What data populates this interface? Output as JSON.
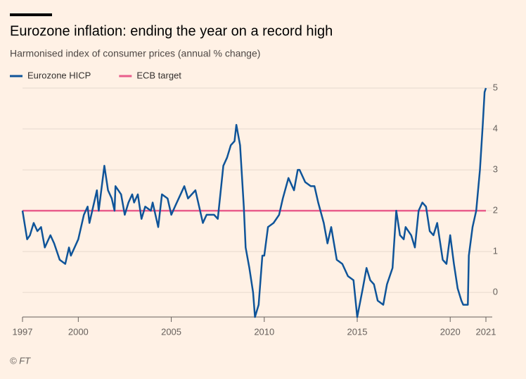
{
  "chart_data": {
    "type": "line",
    "title": "Eurozone inflation: ending the year on a record high",
    "subtitle": "Harmonised index of consumer prices (annual % change)",
    "source": "© FT",
    "xlim": [
      1997,
      2021.92
    ],
    "xticks": [
      1997,
      2000,
      2005,
      2010,
      2015,
      2020,
      {
        "value": 2021.92,
        "label": "2021"
      }
    ],
    "ylim": [
      -0.6,
      5.0
    ],
    "yticks": [
      0,
      1,
      2,
      3,
      4,
      5
    ],
    "grid": true,
    "legend": "top-left",
    "series": [
      {
        "name": "Eurozone HICP",
        "color": "#0f5499",
        "x": [
          1997.0,
          1997.25,
          1997.4,
          1997.6,
          1997.8,
          1998.0,
          1998.2,
          1998.5,
          1998.7,
          1999.0,
          1999.3,
          1999.5,
          1999.6,
          2000.0,
          2000.3,
          2000.5,
          2000.6,
          2000.8,
          2001.0,
          2001.1,
          2001.4,
          2001.6,
          2001.8,
          2001.95,
          2002.0,
          2002.3,
          2002.5,
          2002.7,
          2002.9,
          2003.0,
          2003.2,
          2003.4,
          2003.6,
          2003.9,
          2004.0,
          2004.3,
          2004.5,
          2004.8,
          2005.0,
          2005.2,
          2005.7,
          2005.9,
          2006.3,
          2006.7,
          2006.9,
          2007.3,
          2007.5,
          2007.8,
          2008.0,
          2008.2,
          2008.4,
          2008.5,
          2008.7,
          2008.9,
          2009.0,
          2009.2,
          2009.4,
          2009.5,
          2009.7,
          2009.9,
          2010.0,
          2010.2,
          2010.5,
          2010.8,
          2011.0,
          2011.3,
          2011.6,
          2011.8,
          2011.9,
          2012.2,
          2012.5,
          2012.7,
          2012.9,
          2013.2,
          2013.4,
          2013.6,
          2013.9,
          2014.2,
          2014.5,
          2014.8,
          2015.0,
          2015.3,
          2015.5,
          2015.7,
          2015.9,
          2016.1,
          2016.4,
          2016.6,
          2016.9,
          2017.1,
          2017.3,
          2017.5,
          2017.6,
          2017.9,
          2018.1,
          2018.3,
          2018.5,
          2018.7,
          2018.9,
          2019.1,
          2019.3,
          2019.6,
          2019.8,
          2020.0,
          2020.2,
          2020.4,
          2020.6,
          2020.7,
          2020.95,
          2021.0,
          2021.2,
          2021.4,
          2021.6,
          2021.75,
          2021.85,
          2021.92
        ],
        "values": [
          2.0,
          1.3,
          1.4,
          1.7,
          1.5,
          1.6,
          1.1,
          1.4,
          1.2,
          0.8,
          0.7,
          1.1,
          0.9,
          1.3,
          1.9,
          2.1,
          1.7,
          2.1,
          2.5,
          2.0,
          3.1,
          2.5,
          2.3,
          2.0,
          2.6,
          2.4,
          1.9,
          2.2,
          2.4,
          2.2,
          2.4,
          1.8,
          2.1,
          2.0,
          2.2,
          1.6,
          2.4,
          2.3,
          1.9,
          2.1,
          2.6,
          2.3,
          2.5,
          1.7,
          1.9,
          1.9,
          1.8,
          3.1,
          3.3,
          3.6,
          3.7,
          4.1,
          3.6,
          2.1,
          1.1,
          0.6,
          0.0,
          -0.6,
          -0.3,
          0.9,
          0.9,
          1.6,
          1.7,
          1.9,
          2.3,
          2.8,
          2.5,
          3.0,
          3.0,
          2.7,
          2.6,
          2.6,
          2.2,
          1.7,
          1.2,
          1.6,
          0.8,
          0.7,
          0.4,
          0.3,
          -0.6,
          0.1,
          0.6,
          0.3,
          0.2,
          -0.2,
          -0.3,
          0.2,
          0.6,
          2.0,
          1.4,
          1.3,
          1.6,
          1.4,
          1.1,
          2.0,
          2.2,
          2.1,
          1.5,
          1.4,
          1.7,
          0.8,
          0.7,
          1.4,
          0.7,
          0.1,
          -0.2,
          -0.3,
          -0.3,
          0.9,
          1.6,
          2.0,
          3.0,
          4.1,
          4.9,
          5.0
        ]
      },
      {
        "name": "ECB target",
        "color": "#e95d8c",
        "x": [
          1997.0,
          2021.92
        ],
        "values": [
          2,
          2
        ]
      }
    ]
  }
}
